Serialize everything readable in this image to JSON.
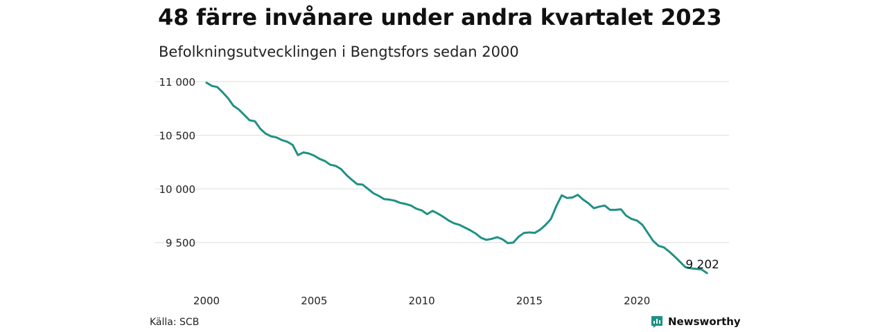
{
  "title": "48 färre invånare under andra kvartalet 2023",
  "subtitle": "Befolkningsutvecklingen i Bengtsfors sedan 2000",
  "source": "Källa: SCB",
  "brand": {
    "name": "Newsworthy",
    "icon": "newsworthy-logo-icon"
  },
  "colors": {
    "line": "#1f9183",
    "brand": "#1f9183",
    "grid": "#dddddd",
    "text": "#111111"
  },
  "chart_data": {
    "type": "line",
    "xlim": [
      2000,
      2023.5
    ],
    "ylim": [
      9150,
      11000
    ],
    "y_ticks": [
      {
        "value": 9500,
        "label": "9 500"
      },
      {
        "value": 10000,
        "label": "10 000"
      },
      {
        "value": 10500,
        "label": "10 500"
      },
      {
        "value": 11000,
        "label": "11 000"
      }
    ],
    "x_ticks": [
      {
        "value": 2000,
        "label": "2000"
      },
      {
        "value": 2005,
        "label": "2005"
      },
      {
        "value": 2010,
        "label": "2010"
      },
      {
        "value": 2015,
        "label": "2015"
      },
      {
        "value": 2020,
        "label": "2020"
      }
    ],
    "grid": true,
    "end_label": {
      "x": 2023.5,
      "y": 9202,
      "text": "9 202"
    },
    "series": [
      {
        "color": "#1f9183",
        "points": [
          [
            2000.0,
            10990
          ],
          [
            2000.25,
            10960
          ],
          [
            2000.5,
            10950
          ],
          [
            2000.75,
            10900
          ],
          [
            2001.0,
            10845
          ],
          [
            2001.25,
            10775
          ],
          [
            2001.5,
            10740
          ],
          [
            2001.75,
            10690
          ],
          [
            2002.0,
            10640
          ],
          [
            2002.25,
            10630
          ],
          [
            2002.5,
            10560
          ],
          [
            2002.75,
            10515
          ],
          [
            2003.0,
            10490
          ],
          [
            2003.25,
            10480
          ],
          [
            2003.5,
            10455
          ],
          [
            2003.75,
            10440
          ],
          [
            2004.0,
            10410
          ],
          [
            2004.25,
            10315
          ],
          [
            2004.5,
            10340
          ],
          [
            2004.75,
            10330
          ],
          [
            2005.0,
            10310
          ],
          [
            2005.25,
            10280
          ],
          [
            2005.5,
            10260
          ],
          [
            2005.75,
            10225
          ],
          [
            2006.0,
            10215
          ],
          [
            2006.25,
            10185
          ],
          [
            2006.5,
            10130
          ],
          [
            2006.75,
            10085
          ],
          [
            2007.0,
            10045
          ],
          [
            2007.25,
            10040
          ],
          [
            2007.5,
            10000
          ],
          [
            2007.75,
            9960
          ],
          [
            2008.0,
            9935
          ],
          [
            2008.25,
            9905
          ],
          [
            2008.5,
            9900
          ],
          [
            2008.75,
            9890
          ],
          [
            2009.0,
            9870
          ],
          [
            2009.25,
            9860
          ],
          [
            2009.5,
            9845
          ],
          [
            2009.75,
            9815
          ],
          [
            2010.0,
            9800
          ],
          [
            2010.25,
            9765
          ],
          [
            2010.5,
            9795
          ],
          [
            2010.75,
            9770
          ],
          [
            2011.0,
            9740
          ],
          [
            2011.25,
            9705
          ],
          [
            2011.5,
            9680
          ],
          [
            2011.75,
            9665
          ],
          [
            2012.0,
            9640
          ],
          [
            2012.25,
            9615
          ],
          [
            2012.5,
            9585
          ],
          [
            2012.75,
            9545
          ],
          [
            2013.0,
            9525
          ],
          [
            2013.25,
            9535
          ],
          [
            2013.5,
            9550
          ],
          [
            2013.75,
            9530
          ],
          [
            2014.0,
            9495
          ],
          [
            2014.25,
            9500
          ],
          [
            2014.5,
            9555
          ],
          [
            2014.75,
            9590
          ],
          [
            2015.0,
            9595
          ],
          [
            2015.25,
            9590
          ],
          [
            2015.5,
            9620
          ],
          [
            2015.75,
            9665
          ],
          [
            2016.0,
            9720
          ],
          [
            2016.25,
            9840
          ],
          [
            2016.5,
            9940
          ],
          [
            2016.75,
            9915
          ],
          [
            2017.0,
            9920
          ],
          [
            2017.25,
            9945
          ],
          [
            2017.5,
            9900
          ],
          [
            2017.75,
            9865
          ],
          [
            2018.0,
            9820
          ],
          [
            2018.25,
            9835
          ],
          [
            2018.5,
            9845
          ],
          [
            2018.75,
            9805
          ],
          [
            2019.0,
            9805
          ],
          [
            2019.25,
            9810
          ],
          [
            2019.5,
            9750
          ],
          [
            2019.75,
            9720
          ],
          [
            2020.0,
            9705
          ],
          [
            2020.25,
            9665
          ],
          [
            2020.5,
            9590
          ],
          [
            2020.75,
            9515
          ],
          [
            2021.0,
            9470
          ],
          [
            2021.25,
            9455
          ],
          [
            2021.5,
            9415
          ],
          [
            2021.75,
            9370
          ],
          [
            2022.0,
            9320
          ],
          [
            2022.25,
            9270
          ],
          [
            2022.5,
            9260
          ],
          [
            2022.75,
            9255
          ],
          [
            2023.0,
            9250
          ],
          [
            2023.25,
            9215
          ]
        ]
      }
    ]
  }
}
